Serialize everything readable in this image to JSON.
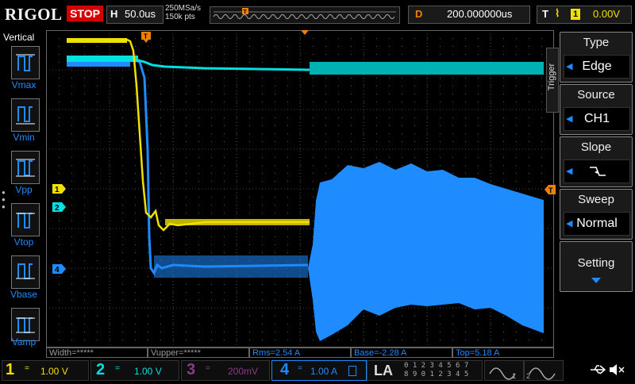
{
  "top": {
    "brand": "RIGOL",
    "run_state": "STOP",
    "horizontal_label": "H",
    "horizontal_value": "50.0us",
    "sample_rate": "250MSa/s",
    "memory_depth": "150k pts",
    "delay_label": "D",
    "delay_value": "200.000000us",
    "trigger_label": "T",
    "trigger_channel": "1",
    "trigger_level": "0.00V"
  },
  "left_panel": {
    "title": "Vertical",
    "items": [
      {
        "label": "Vmax",
        "icon": "vmax-icon"
      },
      {
        "label": "Vmin",
        "icon": "vmin-icon"
      },
      {
        "label": "Vpp",
        "icon": "vpp-icon"
      },
      {
        "label": "Vtop",
        "icon": "vtop-icon"
      },
      {
        "label": "Vbase",
        "icon": "vbase-icon"
      },
      {
        "label": "Vamp",
        "icon": "vamp-icon"
      }
    ]
  },
  "right_panel": {
    "tab_label": "Trigger",
    "buttons": [
      {
        "title": "Type",
        "value": "Edge"
      },
      {
        "title": "Source",
        "value": "CH1"
      },
      {
        "title": "Slope",
        "value": ""
      },
      {
        "title": "Sweep",
        "value": "Normal"
      },
      {
        "title": "Setting",
        "value": ""
      }
    ]
  },
  "markers": {
    "ch1": "1",
    "ch2": "2",
    "ch4": "4",
    "trigger_pos": "T"
  },
  "measurements": [
    {
      "text": "Width=*****",
      "color": "#9a9a9a"
    },
    {
      "text": "Vupper=*****",
      "color": "#9a9a9a"
    },
    {
      "text": "Rms=2.54 A",
      "color": "#1e8bff"
    },
    {
      "text": "Base=-2.28 A",
      "color": "#1e8bff"
    },
    {
      "text": "Top=5.18 A",
      "color": "#1e8bff"
    }
  ],
  "channels": [
    {
      "num": "1",
      "coupling": "=",
      "scale": "1.00 V",
      "color": "#f0e000"
    },
    {
      "num": "2",
      "coupling": "=",
      "scale": "1.00 V",
      "color": "#00e0e0"
    },
    {
      "num": "3",
      "coupling": "=",
      "scale": "200mV",
      "color": "#8a3a8a"
    },
    {
      "num": "4",
      "coupling": "=",
      "scale": "1.00 A",
      "color": "#1e8bff"
    }
  ],
  "la": {
    "label": "LA",
    "digits_row1": "0 1 2 3  4 5 6 7",
    "digits_row2": "8 9 0 1  2 3 4 5"
  },
  "colors": {
    "ch1": "#f0e000",
    "ch2": "#00e0e0",
    "ch4": "#1e8bff",
    "trigger": "#f08000",
    "stop": "#d40000"
  }
}
